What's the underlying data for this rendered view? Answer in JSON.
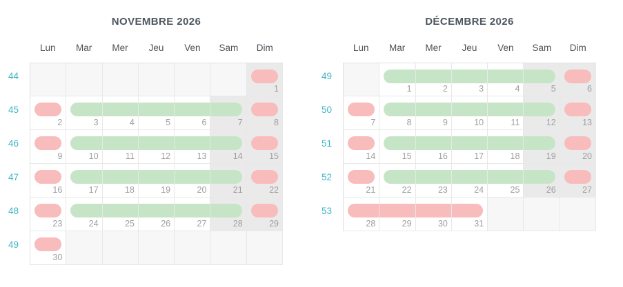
{
  "colors": {
    "green_bar": "#c6e5c7",
    "red_bar": "#f9bcbc",
    "weekday_bg": "#ffffff",
    "weekend_bg": "#eaeaea",
    "out_month_bg": "#f7f7f7",
    "grid_line": "#e8e8e8",
    "outer_border": "#e0e0e0",
    "title_color": "#4d565e",
    "day_header_color": "#4c5157",
    "week_number_color": "#3eb5c6",
    "date_color": "#9e9e9e"
  },
  "day_headers": [
    "Lun",
    "Mar",
    "Mer",
    "Jeu",
    "Ven",
    "Sam",
    "Dim"
  ],
  "calendars": [
    {
      "title": "NOVEMBRE 2026",
      "weeks": [
        {
          "week_number": "44",
          "days": [
            {
              "date": "",
              "bg": "out",
              "bar": null
            },
            {
              "date": "",
              "bg": "out",
              "bar": null
            },
            {
              "date": "",
              "bg": "out",
              "bar": null
            },
            {
              "date": "",
              "bg": "out",
              "bar": null
            },
            {
              "date": "",
              "bg": "out",
              "bar": null
            },
            {
              "date": "",
              "bg": "out",
              "bar": null
            },
            {
              "date": "1",
              "bg": "weekend",
              "bar": {
                "color": "red",
                "shape": "single"
              }
            }
          ]
        },
        {
          "week_number": "45",
          "days": [
            {
              "date": "2",
              "bg": "day",
              "bar": {
                "color": "red",
                "shape": "single"
              }
            },
            {
              "date": "3",
              "bg": "day",
              "bar": {
                "color": "green",
                "shape": "start"
              }
            },
            {
              "date": "4",
              "bg": "day",
              "bar": {
                "color": "green",
                "shape": "mid"
              }
            },
            {
              "date": "5",
              "bg": "day",
              "bar": {
                "color": "green",
                "shape": "mid"
              }
            },
            {
              "date": "6",
              "bg": "day",
              "bar": {
                "color": "green",
                "shape": "mid"
              }
            },
            {
              "date": "7",
              "bg": "weekend",
              "bar": {
                "color": "green",
                "shape": "end"
              }
            },
            {
              "date": "8",
              "bg": "weekend",
              "bar": {
                "color": "red",
                "shape": "single"
              }
            }
          ]
        },
        {
          "week_number": "46",
          "days": [
            {
              "date": "9",
              "bg": "day",
              "bar": {
                "color": "red",
                "shape": "single"
              }
            },
            {
              "date": "10",
              "bg": "day",
              "bar": {
                "color": "green",
                "shape": "start"
              }
            },
            {
              "date": "11",
              "bg": "day",
              "bar": {
                "color": "green",
                "shape": "mid"
              }
            },
            {
              "date": "12",
              "bg": "day",
              "bar": {
                "color": "green",
                "shape": "mid"
              }
            },
            {
              "date": "13",
              "bg": "day",
              "bar": {
                "color": "green",
                "shape": "mid"
              }
            },
            {
              "date": "14",
              "bg": "weekend",
              "bar": {
                "color": "green",
                "shape": "end"
              }
            },
            {
              "date": "15",
              "bg": "weekend",
              "bar": {
                "color": "red",
                "shape": "single"
              }
            }
          ]
        },
        {
          "week_number": "47",
          "days": [
            {
              "date": "16",
              "bg": "day",
              "bar": {
                "color": "red",
                "shape": "single"
              }
            },
            {
              "date": "17",
              "bg": "day",
              "bar": {
                "color": "green",
                "shape": "start"
              }
            },
            {
              "date": "18",
              "bg": "day",
              "bar": {
                "color": "green",
                "shape": "mid"
              }
            },
            {
              "date": "19",
              "bg": "day",
              "bar": {
                "color": "green",
                "shape": "mid"
              }
            },
            {
              "date": "20",
              "bg": "day",
              "bar": {
                "color": "green",
                "shape": "mid"
              }
            },
            {
              "date": "21",
              "bg": "weekend",
              "bar": {
                "color": "green",
                "shape": "end"
              }
            },
            {
              "date": "22",
              "bg": "weekend",
              "bar": {
                "color": "red",
                "shape": "single"
              }
            }
          ]
        },
        {
          "week_number": "48",
          "days": [
            {
              "date": "23",
              "bg": "day",
              "bar": {
                "color": "red",
                "shape": "single"
              }
            },
            {
              "date": "24",
              "bg": "day",
              "bar": {
                "color": "green",
                "shape": "start"
              }
            },
            {
              "date": "25",
              "bg": "day",
              "bar": {
                "color": "green",
                "shape": "mid"
              }
            },
            {
              "date": "26",
              "bg": "day",
              "bar": {
                "color": "green",
                "shape": "mid"
              }
            },
            {
              "date": "27",
              "bg": "day",
              "bar": {
                "color": "green",
                "shape": "mid"
              }
            },
            {
              "date": "28",
              "bg": "weekend",
              "bar": {
                "color": "green",
                "shape": "end"
              }
            },
            {
              "date": "29",
              "bg": "weekend",
              "bar": {
                "color": "red",
                "shape": "single"
              }
            }
          ]
        },
        {
          "week_number": "49",
          "days": [
            {
              "date": "30",
              "bg": "day",
              "bar": {
                "color": "red",
                "shape": "single"
              }
            },
            {
              "date": "",
              "bg": "out",
              "bar": null
            },
            {
              "date": "",
              "bg": "out",
              "bar": null
            },
            {
              "date": "",
              "bg": "out",
              "bar": null
            },
            {
              "date": "",
              "bg": "out",
              "bar": null
            },
            {
              "date": "",
              "bg": "out",
              "bar": null
            },
            {
              "date": "",
              "bg": "out",
              "bar": null
            }
          ]
        }
      ]
    },
    {
      "title": "DÉCEMBRE 2026",
      "weeks": [
        {
          "week_number": "49",
          "days": [
            {
              "date": "",
              "bg": "out",
              "bar": null
            },
            {
              "date": "1",
              "bg": "day",
              "bar": {
                "color": "green",
                "shape": "start"
              }
            },
            {
              "date": "2",
              "bg": "day",
              "bar": {
                "color": "green",
                "shape": "mid"
              }
            },
            {
              "date": "3",
              "bg": "day",
              "bar": {
                "color": "green",
                "shape": "mid"
              }
            },
            {
              "date": "4",
              "bg": "day",
              "bar": {
                "color": "green",
                "shape": "mid"
              }
            },
            {
              "date": "5",
              "bg": "weekend",
              "bar": {
                "color": "green",
                "shape": "end"
              }
            },
            {
              "date": "6",
              "bg": "weekend",
              "bar": {
                "color": "red",
                "shape": "single"
              }
            }
          ]
        },
        {
          "week_number": "50",
          "days": [
            {
              "date": "7",
              "bg": "day",
              "bar": {
                "color": "red",
                "shape": "single"
              }
            },
            {
              "date": "8",
              "bg": "day",
              "bar": {
                "color": "green",
                "shape": "start"
              }
            },
            {
              "date": "9",
              "bg": "day",
              "bar": {
                "color": "green",
                "shape": "mid"
              }
            },
            {
              "date": "10",
              "bg": "day",
              "bar": {
                "color": "green",
                "shape": "mid"
              }
            },
            {
              "date": "11",
              "bg": "day",
              "bar": {
                "color": "green",
                "shape": "mid"
              }
            },
            {
              "date": "12",
              "bg": "weekend",
              "bar": {
                "color": "green",
                "shape": "end"
              }
            },
            {
              "date": "13",
              "bg": "weekend",
              "bar": {
                "color": "red",
                "shape": "single"
              }
            }
          ]
        },
        {
          "week_number": "51",
          "days": [
            {
              "date": "14",
              "bg": "day",
              "bar": {
                "color": "red",
                "shape": "single"
              }
            },
            {
              "date": "15",
              "bg": "day",
              "bar": {
                "color": "green",
                "shape": "start"
              }
            },
            {
              "date": "16",
              "bg": "day",
              "bar": {
                "color": "green",
                "shape": "mid"
              }
            },
            {
              "date": "17",
              "bg": "day",
              "bar": {
                "color": "green",
                "shape": "mid"
              }
            },
            {
              "date": "18",
              "bg": "day",
              "bar": {
                "color": "green",
                "shape": "mid"
              }
            },
            {
              "date": "19",
              "bg": "weekend",
              "bar": {
                "color": "green",
                "shape": "end"
              }
            },
            {
              "date": "20",
              "bg": "weekend",
              "bar": {
                "color": "red",
                "shape": "single"
              }
            }
          ]
        },
        {
          "week_number": "52",
          "days": [
            {
              "date": "21",
              "bg": "day",
              "bar": {
                "color": "red",
                "shape": "single"
              }
            },
            {
              "date": "22",
              "bg": "day",
              "bar": {
                "color": "green",
                "shape": "start"
              }
            },
            {
              "date": "23",
              "bg": "day",
              "bar": {
                "color": "green",
                "shape": "mid"
              }
            },
            {
              "date": "24",
              "bg": "day",
              "bar": {
                "color": "green",
                "shape": "mid"
              }
            },
            {
              "date": "25",
              "bg": "day",
              "bar": {
                "color": "green",
                "shape": "mid"
              }
            },
            {
              "date": "26",
              "bg": "weekend",
              "bar": {
                "color": "green",
                "shape": "end"
              }
            },
            {
              "date": "27",
              "bg": "weekend",
              "bar": {
                "color": "red",
                "shape": "single"
              }
            }
          ]
        },
        {
          "week_number": "53",
          "days": [
            {
              "date": "28",
              "bg": "day",
              "bar": {
                "color": "red",
                "shape": "start"
              }
            },
            {
              "date": "29",
              "bg": "day",
              "bar": {
                "color": "red",
                "shape": "mid"
              }
            },
            {
              "date": "30",
              "bg": "day",
              "bar": {
                "color": "red",
                "shape": "mid"
              }
            },
            {
              "date": "31",
              "bg": "day",
              "bar": {
                "color": "red",
                "shape": "end"
              }
            },
            {
              "date": "",
              "bg": "out",
              "bar": null
            },
            {
              "date": "",
              "bg": "out",
              "bar": null
            },
            {
              "date": "",
              "bg": "out",
              "bar": null
            }
          ]
        }
      ]
    }
  ]
}
